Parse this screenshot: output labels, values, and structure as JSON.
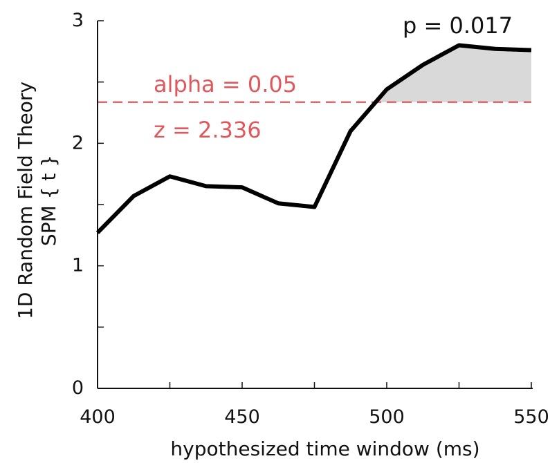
{
  "chart_data": {
    "type": "line",
    "title": "",
    "xlabel": "hypothesized time window (ms)",
    "ylabel_line1": "1D Random Field Theory",
    "ylabel_line2": "SPM { t }",
    "xlim": [
      400,
      550
    ],
    "ylim": [
      0,
      3
    ],
    "xticks": [
      400,
      425,
      450,
      475,
      500,
      525,
      550
    ],
    "xtick_labels": [
      "400",
      "450",
      "500",
      "550"
    ],
    "xtick_label_values": [
      400,
      450,
      500,
      550
    ],
    "yticks": [
      0,
      0.5,
      1,
      1.5,
      2,
      2.5,
      3
    ],
    "ytick_labels": [
      "0",
      "1",
      "2",
      "3"
    ],
    "ytick_label_values": [
      0,
      1,
      2,
      3
    ],
    "series": [
      {
        "x": [
          400,
          412.5,
          425,
          437.5,
          450,
          462.5,
          475,
          487.5,
          500,
          512.5,
          525,
          537.5,
          550
        ],
        "y": [
          1.27,
          1.57,
          1.73,
          1.65,
          1.64,
          1.51,
          1.48,
          2.1,
          2.44,
          2.64,
          2.8,
          2.77,
          2.76
        ],
        "color": "#000000"
      }
    ],
    "threshold": {
      "value": 2.336,
      "color": "#e0575c",
      "alpha_label": "alpha = 0.05",
      "z_label": "z = 2.336"
    },
    "cluster": {
      "fill": "#d9d9d9",
      "p_label": "p = 0.017"
    },
    "grid": false,
    "legend": "none"
  }
}
